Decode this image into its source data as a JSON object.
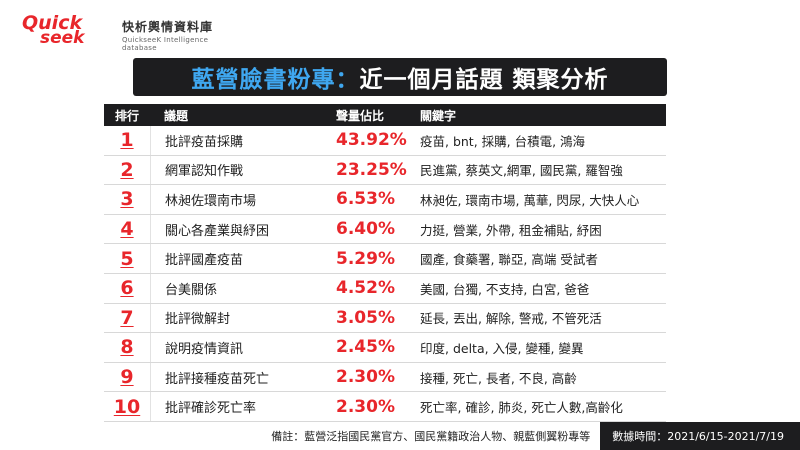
{
  "logo": {
    "quick": "Quick",
    "seek": "seek",
    "name_cn": "快析輿情資料庫",
    "name_en": "QuickseeK Intelligence database"
  },
  "title": {
    "part1": "藍營臉書粉專：",
    "part2": "近一個月話題 類聚分析"
  },
  "table": {
    "headers": [
      "排行",
      "議題",
      "聲量佔比",
      "關鍵字"
    ],
    "rows": [
      {
        "rank": "1",
        "topic": "批評疫苗採購",
        "share": "43.92%",
        "keywords": "疫苗, bnt, 採購, 台積電, 鴻海"
      },
      {
        "rank": "2",
        "topic": "網軍認知作戰",
        "share": "23.25%",
        "keywords": "民進黨, 蔡英文,網軍, 國民黨, 羅智強"
      },
      {
        "rank": "3",
        "topic": "林昶佐環南市場",
        "share": "6.53%",
        "keywords": "林昶佐, 環南市場, 萬華, 閃尿, 大快人心"
      },
      {
        "rank": "4",
        "topic": "關心各產業與紓困",
        "share": "6.40%",
        "keywords": "力挺, 營業, 外帶, 租金補貼, 紓困"
      },
      {
        "rank": "5",
        "topic": "批評國產疫苗",
        "share": "5.29%",
        "keywords": "國產, 食藥署, 聯亞, 高端 受試者"
      },
      {
        "rank": "6",
        "topic": "台美關係",
        "share": "4.52%",
        "keywords": "美國, 台獨, 不支持, 白宮, 爸爸"
      },
      {
        "rank": "7",
        "topic": "批評微解封",
        "share": "3.05%",
        "keywords": "延長, 丟出, 解除, 警戒, 不管死活"
      },
      {
        "rank": "8",
        "topic": "說明疫情資訊",
        "share": "2.45%",
        "keywords": "印度, delta, 入侵, 變種, 變異"
      },
      {
        "rank": "9",
        "topic": "批評接種疫苗死亡",
        "share": "2.30%",
        "keywords": "接種, 死亡, 長者, 不良, 高齡"
      },
      {
        "rank": "10",
        "topic": "批評確診死亡率",
        "share": "2.30%",
        "keywords": "死亡率, 確診, 肺炎, 死亡人數,高齡化"
      }
    ]
  },
  "footer": {
    "note": "備註：藍營泛指國民黨官方、國民黨籍政治人物、親藍側翼粉專等",
    "date": "數據時間：2021/6/15-2021/7/19"
  },
  "colors": {
    "accent_red": "#e8262b",
    "title_blue": "#3fa7f0",
    "dark": "#1d1d1f"
  }
}
